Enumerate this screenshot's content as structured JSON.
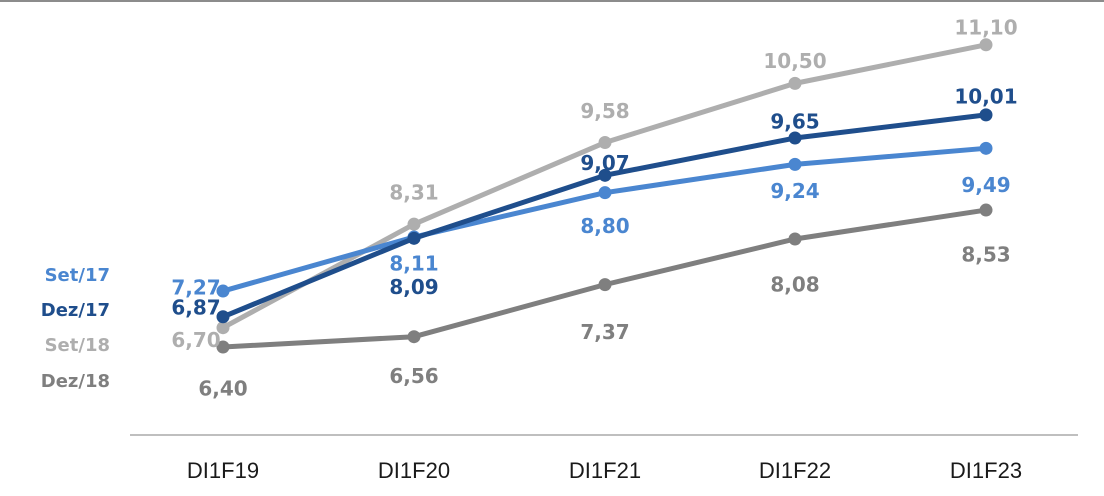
{
  "chart_data": {
    "type": "line",
    "categories": [
      "DI1F19",
      "DI1F20",
      "DI1F21",
      "DI1F22",
      "DI1F23"
    ],
    "ylim": [
      5.5,
      11.5
    ],
    "grid": false,
    "legend_placement": "left",
    "series": [
      {
        "name": "Set/18",
        "color": "#AEAEAE",
        "values": [
          6.7,
          8.31,
          9.58,
          10.5,
          11.1
        ],
        "labels": [
          "6,70",
          "8,31",
          "9,58",
          "10,50",
          "11,10"
        ]
      },
      {
        "name": "Set/17",
        "color": "#4A86D0",
        "values": [
          7.27,
          8.11,
          8.8,
          9.24,
          9.49
        ],
        "labels": [
          "7,27",
          "8,11",
          "8,80",
          "9,24",
          "9,49"
        ]
      },
      {
        "name": "Dez/17",
        "color": "#1F4E8C",
        "values": [
          6.87,
          8.09,
          9.07,
          9.65,
          10.01
        ],
        "labels": [
          "6,87",
          "8,09",
          "9,07",
          "9,65",
          "10,01"
        ]
      },
      {
        "name": "Dez/18",
        "color": "#7F7F7F",
        "values": [
          6.4,
          6.56,
          7.37,
          8.08,
          8.53
        ],
        "labels": [
          "6,40",
          "6,56",
          "7,37",
          "8,08",
          "8,53"
        ]
      }
    ]
  }
}
